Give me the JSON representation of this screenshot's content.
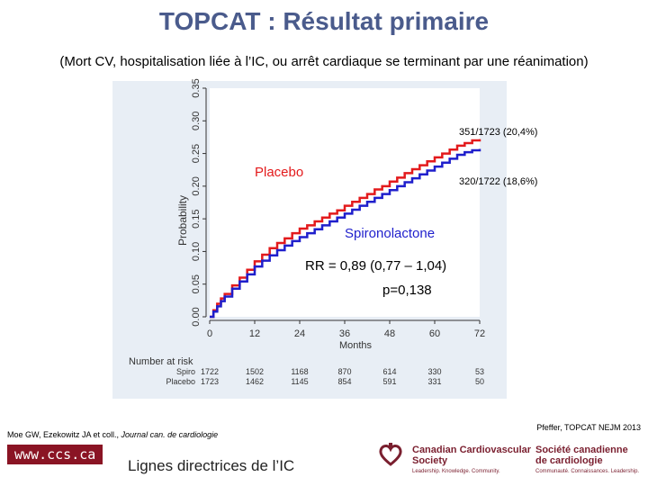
{
  "slide": {
    "title": "TOPCAT : Résultat primaire",
    "subtitle": "(Mort CV, hospitalisation liée à l’IC, ou arrêt cardiaque se terminant par une réanimation)",
    "citation_left_authors": "Moe GW, Ezekowitz JA et coll., ",
    "citation_left_journal": "Journal can. de cardiologie",
    "citation_right": "Pfeffer, TOPCAT NEJM 2013"
  },
  "footer": {
    "url": "www.ccs.ca",
    "line": "Lignes directrices de l’IC",
    "logo_en_1": "Canadian Cardiovascular",
    "logo_en_2": "Society",
    "logo_en_tag": "Leadership. Knowledge. Community.",
    "logo_fr_1": "Société canadienne",
    "logo_fr_2": "de cardiologie",
    "logo_fr_tag": "Communauté. Connaissances. Leadership."
  },
  "chart_data": {
    "type": "line",
    "title": "",
    "xlabel": "Months",
    "ylabel": "Probability",
    "xlim": [
      0,
      72
    ],
    "ylim": [
      0,
      0.35
    ],
    "x_ticks": [
      0,
      12,
      24,
      36,
      48,
      60,
      72
    ],
    "y_ticks": [
      "0.00",
      "0.05",
      "0.10",
      "0.15",
      "0.20",
      "0.25",
      "0.30",
      "0.35"
    ],
    "series": [
      {
        "name": "Placebo",
        "color": "#e31a1c",
        "x": [
          0,
          1,
          2,
          3,
          4,
          6,
          8,
          10,
          12,
          14,
          16,
          18,
          20,
          22,
          24,
          26,
          28,
          30,
          32,
          34,
          36,
          38,
          40,
          42,
          44,
          46,
          48,
          50,
          52,
          54,
          56,
          58,
          60,
          62,
          64,
          66,
          68,
          70,
          72
        ],
        "y": [
          0,
          0.01,
          0.02,
          0.028,
          0.035,
          0.048,
          0.06,
          0.072,
          0.085,
          0.095,
          0.105,
          0.113,
          0.12,
          0.128,
          0.135,
          0.14,
          0.146,
          0.152,
          0.158,
          0.163,
          0.17,
          0.176,
          0.182,
          0.188,
          0.195,
          0.2,
          0.207,
          0.213,
          0.22,
          0.226,
          0.232,
          0.238,
          0.244,
          0.25,
          0.256,
          0.262,
          0.266,
          0.27,
          0.272
        ]
      },
      {
        "name": "Spironolactone",
        "color": "#1f1fcc",
        "x": [
          0,
          1,
          2,
          3,
          4,
          6,
          8,
          10,
          12,
          14,
          16,
          18,
          20,
          22,
          24,
          26,
          28,
          30,
          32,
          34,
          36,
          38,
          40,
          42,
          44,
          46,
          48,
          50,
          52,
          54,
          56,
          58,
          60,
          62,
          64,
          66,
          68,
          70,
          72
        ],
        "y": [
          0,
          0.008,
          0.016,
          0.024,
          0.031,
          0.043,
          0.054,
          0.065,
          0.077,
          0.086,
          0.094,
          0.102,
          0.109,
          0.116,
          0.122,
          0.128,
          0.134,
          0.14,
          0.146,
          0.152,
          0.158,
          0.164,
          0.17,
          0.176,
          0.182,
          0.188,
          0.194,
          0.2,
          0.206,
          0.212,
          0.218,
          0.224,
          0.23,
          0.236,
          0.242,
          0.248,
          0.252,
          0.255,
          0.257
        ]
      }
    ],
    "annotations": {
      "placebo_label": "Placebo",
      "spiro_label": "Spironolactone",
      "placebo_events": "351/1723 (20,4%)",
      "spiro_events": "320/1722 (18,6%)",
      "rr": "RR = 0,89 (0,77 – 1,04)",
      "p": "p=0,138"
    },
    "risk_table": {
      "title": "Number at risk",
      "rows": [
        {
          "label": "Spiro",
          "values": [
            "1722",
            "1502",
            "1168",
            "870",
            "614",
            "330",
            "53"
          ]
        },
        {
          "label": "Placebo",
          "values": [
            "1723",
            "1462",
            "1145",
            "854",
            "591",
            "331",
            "50"
          ]
        }
      ]
    }
  }
}
